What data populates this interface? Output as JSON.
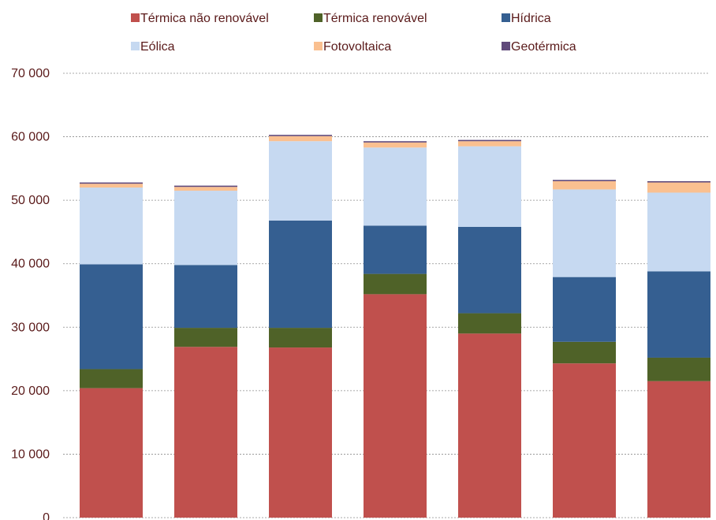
{
  "chart_data": {
    "type": "bar",
    "stacked": true,
    "title": "",
    "xlabel": "",
    "ylabel": "",
    "ylim": [
      0,
      70000
    ],
    "yticks": [
      0,
      10000,
      20000,
      30000,
      40000,
      50000,
      60000,
      70000
    ],
    "ytick_labels": [
      "0",
      "10 000",
      "20 000",
      "30 000",
      "40 000",
      "50 000",
      "60 000",
      "70 000"
    ],
    "grid": true,
    "legend_position": "top",
    "categories": [
      "",
      "",
      "",
      "",
      "",
      "",
      ""
    ],
    "series": [
      {
        "name": "Térmica não renovável",
        "color": "#c0504d",
        "values": [
          20400,
          26900,
          26800,
          35200,
          29000,
          24300,
          21500
        ]
      },
      {
        "name": "Térmica renovável",
        "color": "#4f6228",
        "values": [
          3000,
          3000,
          3100,
          3200,
          3200,
          3400,
          3700
        ]
      },
      {
        "name": "Hídrica",
        "color": "#355f91",
        "values": [
          16500,
          9900,
          16900,
          7600,
          13600,
          10200,
          13600
        ]
      },
      {
        "name": "Eólica",
        "color": "#c6d9f1",
        "values": [
          12100,
          11700,
          12500,
          12300,
          12700,
          13800,
          12400
        ]
      },
      {
        "name": "Fotovoltaica",
        "color": "#fac090",
        "values": [
          600,
          600,
          800,
          800,
          800,
          1300,
          1600
        ]
      },
      {
        "name": "Geotérmica",
        "color": "#604a7b",
        "values": [
          200,
          200,
          200,
          200,
          200,
          200,
          200
        ]
      }
    ]
  }
}
